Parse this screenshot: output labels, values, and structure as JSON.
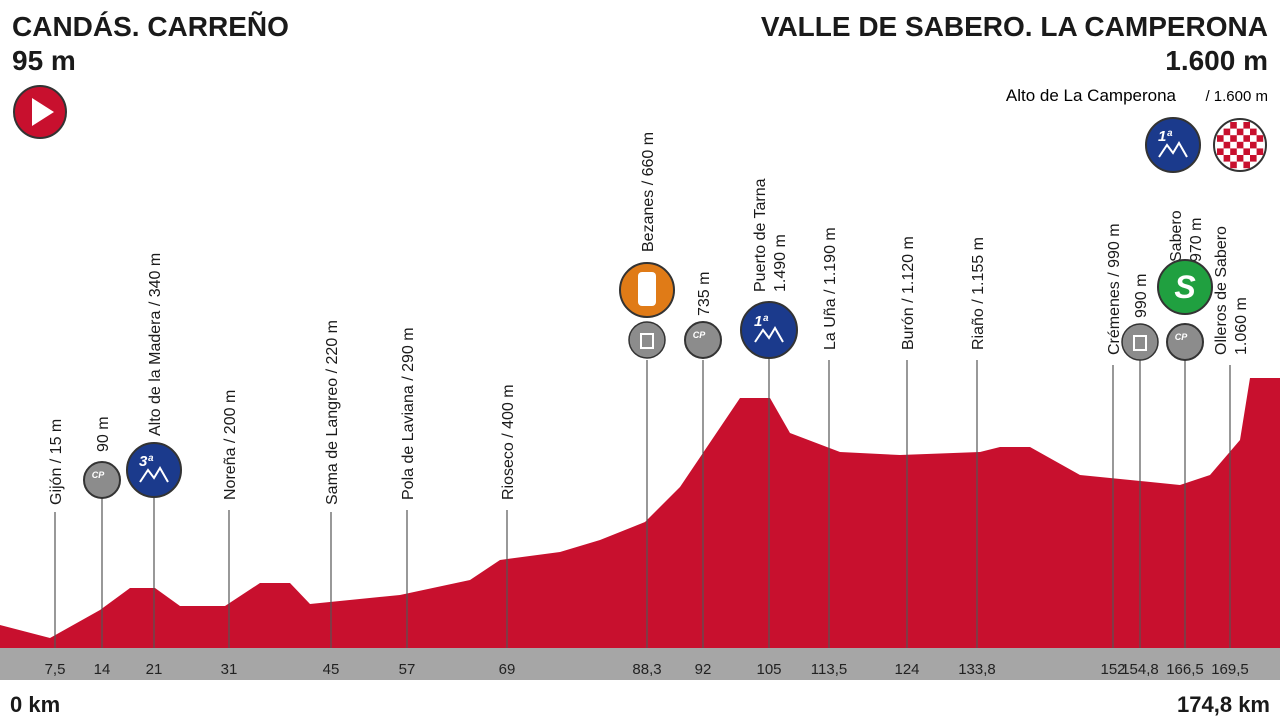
{
  "header": {
    "start_name": "CANDÁS. CARREÑO",
    "start_alt": "95 m",
    "finish_name": "VALLE DE SABERO. LA CAMPERONA",
    "finish_alt": "1.600 m",
    "summit_name": "Alto de La Camperona",
    "summit_alt": "/ 1.600 m"
  },
  "waypoints": [
    {
      "km": "7,5",
      "lines": [
        "Gijón / 15 m"
      ]
    },
    {
      "km": "14",
      "lines": [
        "90 m"
      ]
    },
    {
      "km": "21",
      "lines": [
        "Alto de la Madera / 340 m"
      ]
    },
    {
      "km": "31",
      "lines": [
        "Noreña / 200 m"
      ]
    },
    {
      "km": "45",
      "lines": [
        "Sama de Langreo / 220 m"
      ]
    },
    {
      "km": "57",
      "lines": [
        "Pola de Laviana / 290 m"
      ]
    },
    {
      "km": "69",
      "lines": [
        "Rioseco / 400 m"
      ]
    },
    {
      "km": "88,3",
      "lines": [
        "Bezanes / 660 m"
      ]
    },
    {
      "km": "92",
      "lines": [
        "735 m"
      ]
    },
    {
      "km": "105",
      "lines": [
        "Puerto de Tarna",
        "1.490 m"
      ]
    },
    {
      "km": "113,5",
      "lines": [
        "La Uña / 1.190 m"
      ]
    },
    {
      "km": "124",
      "lines": [
        "Burón / 1.120 m"
      ]
    },
    {
      "km": "133,8",
      "lines": [
        "Riaño / 1.155 m"
      ]
    },
    {
      "km": "152",
      "lines": [
        "Crémenes / 990 m"
      ]
    },
    {
      "km": "154,8",
      "lines": [
        "990 m"
      ]
    },
    {
      "km": "166,5",
      "lines": [
        "Sabero",
        "970 m"
      ]
    },
    {
      "km": "169,5",
      "lines": [
        "Olleros de Sabero",
        "1.060 m"
      ]
    }
  ],
  "badges": [
    "CP",
    "3ª",
    "CP",
    "1ª",
    "S",
    "CP",
    "1ª"
  ],
  "footer": {
    "start_km": "0 km",
    "end_km": "174,8 km"
  }
}
